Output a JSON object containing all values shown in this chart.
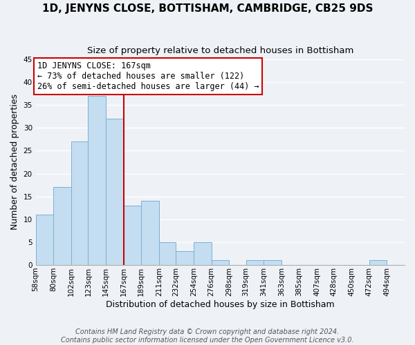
{
  "title": "1D, JENYNS CLOSE, BOTTISHAM, CAMBRIDGE, CB25 9DS",
  "subtitle": "Size of property relative to detached houses in Bottisham",
  "xlabel": "Distribution of detached houses by size in Bottisham",
  "ylabel": "Number of detached properties",
  "footer1": "Contains HM Land Registry data © Crown copyright and database right 2024.",
  "footer2": "Contains public sector information licensed under the Open Government Licence v3.0.",
  "bin_labels": [
    "58sqm",
    "80sqm",
    "102sqm",
    "123sqm",
    "145sqm",
    "167sqm",
    "189sqm",
    "211sqm",
    "232sqm",
    "254sqm",
    "276sqm",
    "298sqm",
    "319sqm",
    "341sqm",
    "363sqm",
    "385sqm",
    "407sqm",
    "428sqm",
    "450sqm",
    "472sqm",
    "494sqm"
  ],
  "bin_edges": [
    58,
    80,
    102,
    123,
    145,
    167,
    189,
    211,
    232,
    254,
    276,
    298,
    319,
    341,
    363,
    385,
    407,
    428,
    450,
    472,
    494
  ],
  "bar_heights": [
    11,
    17,
    27,
    37,
    32,
    13,
    14,
    5,
    3,
    5,
    1,
    0,
    1,
    1,
    0,
    0,
    0,
    0,
    0,
    1,
    0
  ],
  "bar_color": "#c5ddf0",
  "bar_edge_color": "#7ab0d4",
  "redline_x": 167,
  "ylim": [
    0,
    45
  ],
  "yticks": [
    0,
    5,
    10,
    15,
    20,
    25,
    30,
    35,
    40,
    45
  ],
  "annotation_title": "1D JENYNS CLOSE: 167sqm",
  "annotation_line1": "← 73% of detached houses are smaller (122)",
  "annotation_line2": "26% of semi-detached houses are larger (44) →",
  "annotation_box_color": "#ffffff",
  "annotation_box_edgecolor": "#cc0000",
  "title_fontsize": 11,
  "subtitle_fontsize": 9.5,
  "annotation_fontsize": 8.5,
  "tick_fontsize": 7.5,
  "label_fontsize": 9,
  "footer_fontsize": 7,
  "background_color": "#eef2f7"
}
